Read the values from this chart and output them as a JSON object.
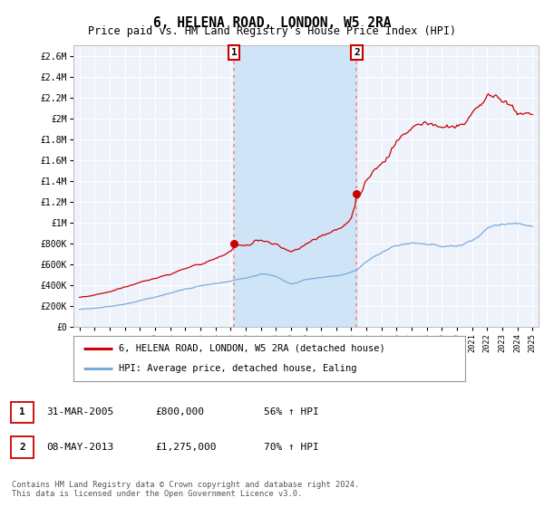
{
  "title": "6, HELENA ROAD, LONDON, W5 2RA",
  "subtitle": "Price paid vs. HM Land Registry's House Price Index (HPI)",
  "title_fontsize": 10.5,
  "subtitle_fontsize": 8.5,
  "ylim": [
    0,
    2700000
  ],
  "yticks": [
    0,
    200000,
    400000,
    600000,
    800000,
    1000000,
    1200000,
    1400000,
    1600000,
    1800000,
    2000000,
    2200000,
    2400000,
    2600000
  ],
  "ytick_labels": [
    "£0",
    "£200K",
    "£400K",
    "£600K",
    "£800K",
    "£1M",
    "£1.2M",
    "£1.4M",
    "£1.6M",
    "£1.8M",
    "£2M",
    "£2.2M",
    "£2.4M",
    "£2.6M"
  ],
  "background_color": "#ffffff",
  "plot_bg_color": "#eef2fa",
  "grid_color": "#ffffff",
  "red_line_color": "#cc0000",
  "blue_line_color": "#7aaadd",
  "shade_color": "#d0e4f7",
  "marker1_year": 2005.24,
  "marker2_year": 2013.36,
  "marker1_price": 800000,
  "marker2_price": 1275000,
  "vline_color": "#ff7777",
  "vline_style": ":",
  "legend_red_label": "6, HELENA ROAD, LONDON, W5 2RA (detached house)",
  "legend_blue_label": "HPI: Average price, detached house, Ealing",
  "annotation1": [
    "1",
    "31-MAR-2005",
    "£800,000",
    "56% ↑ HPI"
  ],
  "annotation2": [
    "2",
    "08-MAY-2013",
    "£1,275,000",
    "70% ↑ HPI"
  ],
  "footnote": "Contains HM Land Registry data © Crown copyright and database right 2024.\nThis data is licensed under the Open Government Licence v3.0.",
  "xlim_left": 1994.6,
  "xlim_right": 2025.4
}
